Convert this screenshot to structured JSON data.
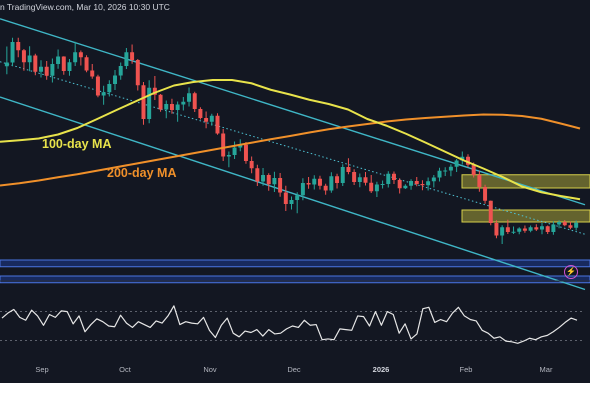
{
  "header": {
    "text": "n TradingView.com, Mar 10, 2026 10:30 UTC"
  },
  "labels": {
    "ma100": "100-day MA",
    "ma200": "200-day MA"
  },
  "colors": {
    "background": "#131722",
    "bull": "#26a69a",
    "bear": "#ef5350",
    "ma100": "#e8e34b",
    "ma200": "#f0902a",
    "channel": "#3fb6c6",
    "midline": "#4fc3d4",
    "zone_yellow": "#a7a238",
    "zone_blue": "#1e3a8f",
    "rsi": "#e6e6e6",
    "alert": "#d152d1"
  },
  "icons": {
    "alert": "lightning-icon"
  },
  "chart_data": [
    {
      "type": "candlestick",
      "title": "",
      "x_axis": {
        "ticks": [
          "Sep",
          "Oct",
          "Nov",
          "Dec",
          "2026",
          "Feb",
          "Mar"
        ],
        "strong_ticks": [
          "2026"
        ]
      },
      "y_scale_note": "price axis not shown; values in relative units (0 = bottom, 100 = top of price pane)",
      "ylim": [
        0,
        100
      ],
      "candles": [
        [
          80.7,
          88.6,
          77.5,
          82.2
        ],
        [
          82.2,
          92.1,
          80.7,
          90.4
        ],
        [
          90.4,
          92.1,
          84.3,
          87.1
        ],
        [
          87.1,
          87.6,
          78.9,
          82.3
        ],
        [
          82.3,
          88.7,
          78.7,
          85.0
        ],
        [
          85.0,
          85.7,
          77.1,
          78.5
        ],
        [
          78.5,
          83.1,
          76.2,
          80.5
        ],
        [
          80.5,
          82.8,
          75.3,
          76.9
        ],
        [
          76.9,
          83.8,
          74.2,
          81.6
        ],
        [
          81.6,
          87.4,
          79.7,
          84.6
        ],
        [
          84.6,
          84.7,
          77.3,
          78.8
        ],
        [
          78.8,
          83.6,
          76.9,
          82.3
        ],
        [
          82.3,
          90.5,
          80.8,
          86.3
        ],
        [
          86.3,
          87.0,
          81.0,
          84.3
        ],
        [
          84.3,
          85.1,
          78.3,
          79.0
        ],
        [
          79.0,
          81.6,
          75.7,
          76.6
        ],
        [
          76.6,
          77.3,
          68.3,
          69.0
        ],
        [
          69.0,
          72.9,
          65.3,
          70.3
        ],
        [
          70.3,
          75.1,
          68.6,
          73.6
        ],
        [
          73.6,
          79.2,
          71.2,
          77.0
        ],
        [
          77.0,
          82.2,
          75.3,
          80.8
        ],
        [
          80.8,
          88.0,
          79.6,
          86.3
        ],
        [
          86.3,
          89.4,
          81.7,
          83.2
        ],
        [
          83.2,
          83.6,
          71.0,
          73.1
        ],
        [
          73.1,
          74.4,
          57.3,
          59.6
        ],
        [
          59.6,
          75.1,
          57.9,
          72.1
        ],
        [
          72.1,
          76.8,
          67.2,
          69.3
        ],
        [
          69.3,
          69.6,
          62.5,
          63.4
        ],
        [
          63.4,
          67.0,
          59.9,
          65.6
        ],
        [
          65.6,
          67.7,
          61.7,
          63.2
        ],
        [
          63.2,
          66.6,
          58.5,
          65.4
        ],
        [
          65.4,
          68.4,
          63.0,
          66.5
        ],
        [
          66.5,
          72.2,
          64.6,
          69.9
        ],
        [
          69.9,
          70.5,
          62.4,
          63.6
        ],
        [
          63.6,
          64.3,
          59.4,
          60.0
        ],
        [
          60.0,
          62.6,
          55.9,
          58.5
        ],
        [
          58.5,
          61.7,
          56.9,
          60.9
        ],
        [
          60.9,
          61.9,
          53.3,
          53.8
        ],
        [
          53.8,
          55.6,
          42.8,
          44.6
        ],
        [
          44.6,
          46.6,
          40.3,
          45.2
        ],
        [
          45.2,
          50.6,
          43.6,
          48.2
        ],
        [
          48.2,
          51.5,
          46.7,
          49.3
        ],
        [
          49.3,
          50.4,
          41.7,
          42.8
        ],
        [
          42.8,
          44.6,
          37.9,
          39.9
        ],
        [
          39.9,
          41.3,
          32.8,
          34.6
        ],
        [
          34.6,
          40.0,
          32.9,
          37.2
        ],
        [
          37.2,
          37.9,
          30.9,
          33.5
        ],
        [
          33.5,
          38.5,
          30.4,
          36.0
        ],
        [
          36.0,
          38.0,
          28.5,
          30.2
        ],
        [
          30.2,
          32.9,
          22.8,
          25.6
        ],
        [
          25.6,
          28.6,
          23.4,
          27.2
        ],
        [
          27.2,
          30.3,
          21.9,
          29.1
        ],
        [
          29.1,
          35.9,
          27.1,
          34.0
        ],
        [
          34.0,
          36.4,
          31.7,
          33.4
        ],
        [
          33.4,
          37.1,
          31.4,
          35.7
        ],
        [
          35.7,
          36.9,
          31.4,
          32.9
        ],
        [
          32.9,
          33.7,
          29.3,
          31.0
        ],
        [
          31.0,
          38.3,
          30.1,
          36.7
        ],
        [
          36.7,
          37.7,
          31.8,
          34.0
        ],
        [
          34.0,
          41.5,
          32.8,
          40.4
        ],
        [
          40.4,
          43.9,
          37.5,
          38.4
        ],
        [
          38.4,
          39.5,
          33.2,
          34.4
        ],
        [
          34.4,
          37.8,
          32.3,
          36.3
        ],
        [
          36.3,
          38.4,
          33.0,
          34.1
        ],
        [
          34.1,
          37.2,
          30.0,
          30.7
        ],
        [
          30.7,
          34.5,
          28.4,
          33.4
        ],
        [
          33.4,
          35.0,
          31.8,
          33.6
        ],
        [
          33.6,
          38.7,
          32.2,
          37.7
        ],
        [
          37.7,
          38.6,
          33.6,
          35.2
        ],
        [
          35.2,
          35.9,
          29.8,
          31.9
        ],
        [
          31.9,
          33.5,
          31.6,
          32.9
        ],
        [
          32.9,
          35.5,
          31.3,
          34.8
        ],
        [
          34.8,
          36.4,
          32.7,
          33.6
        ],
        [
          33.6,
          35.1,
          31.1,
          33.1
        ],
        [
          33.1,
          36.2,
          31.0,
          34.7
        ],
        [
          34.7,
          37.2,
          32.2,
          36.2
        ],
        [
          36.2,
          40.1,
          34.6,
          38.9
        ],
        [
          38.9,
          40.3,
          36.8,
          39.0
        ],
        [
          39.0,
          41.5,
          36.7,
          40.5
        ],
        [
          40.5,
          43.6,
          38.4,
          43.0
        ],
        [
          43.0,
          46.6,
          41.4,
          44.5
        ],
        [
          44.5,
          45.5,
          40.3,
          41.3
        ],
        [
          41.3,
          42.2,
          36.2,
          37.2
        ],
        [
          37.2,
          38.9,
          30.5,
          32.4
        ],
        [
          32.4,
          33.3,
          25.7,
          26.9
        ],
        [
          26.9,
          27.0,
          17.1,
          18.0
        ],
        [
          18.0,
          19.1,
          11.9,
          13.0
        ],
        [
          13.0,
          17.1,
          9.6,
          16.3
        ],
        [
          16.3,
          19.3,
          13.6,
          14.4
        ],
        [
          14.4,
          16.6,
          13.6,
          14.5
        ],
        [
          14.5,
          16.3,
          13.5,
          15.8
        ],
        [
          15.8,
          17.0,
          14.1,
          14.9
        ],
        [
          14.9,
          17.0,
          14.3,
          16.3
        ],
        [
          16.3,
          17.5,
          14.8,
          15.4
        ],
        [
          15.4,
          18.0,
          13.5,
          16.7
        ],
        [
          16.7,
          17.0,
          13.6,
          14.4
        ],
        [
          14.4,
          18.7,
          13.3,
          17.4
        ],
        [
          17.4,
          19.1,
          15.9,
          18.4
        ],
        [
          18.4,
          19.2,
          16.7,
          17.1
        ],
        [
          17.1,
          18.5,
          15.5,
          16.1
        ],
        [
          16.1,
          19.0,
          15.0,
          18.1
        ]
      ],
      "ma100": [
        50.5,
        51.1,
        51.8,
        53.4,
        56.0,
        59.5,
        63.1,
        66.6,
        70.1,
        73.0,
        74.4,
        75.2,
        75.2,
        73.9,
        71.3,
        69.4,
        67.3,
        65.6,
        63.4,
        59.6,
        56.9,
        53.7,
        50.2,
        46.6,
        43.0,
        39.8,
        36.4,
        32.6,
        30.3,
        28.8,
        27.5
      ],
      "ma200": [
        33.0,
        33.9,
        35.0,
        36.3,
        37.5,
        38.9,
        40.3,
        41.7,
        43.1,
        44.5,
        45.9,
        47.3,
        48.7,
        50.1,
        51.5,
        52.8,
        54.2,
        55.5,
        56.6,
        57.6,
        58.6,
        59.4,
        60.0,
        60.5,
        61.0,
        61.4,
        61.3,
        60.8,
        59.7,
        57.8,
        55.8
      ],
      "channel_upper": [
        99.7,
        25.3
      ],
      "channel_lower": [
        68.4,
        -8.6
      ],
      "channel_mid": [
        82.5,
        13.5
      ],
      "resistance_zones": [
        [
          32.0,
          37.3
        ],
        [
          18.4,
          23.2
        ]
      ],
      "support_zones": [
        [
          0.5,
          3.2
        ],
        [
          -5.9,
          -3.2
        ]
      ]
    },
    {
      "type": "line",
      "title": "",
      "series_meaning": "RSI oscillator (no labels printed)",
      "ylim": [
        0,
        100
      ],
      "bands": [
        30,
        70
      ],
      "values": [
        61,
        68,
        73,
        62,
        58,
        72,
        64,
        51,
        66,
        62,
        71,
        70,
        53,
        64,
        42,
        52,
        60,
        56,
        50,
        49,
        65,
        54,
        48,
        56,
        52,
        48,
        57,
        54,
        64,
        78,
        52,
        56,
        54,
        53,
        62,
        44,
        34,
        51,
        61,
        40,
        35,
        43,
        41,
        45,
        36,
        45,
        39,
        40,
        46,
        50,
        48,
        58,
        51,
        52,
        31,
        32,
        31,
        46,
        45,
        44,
        64,
        63,
        50,
        70,
        51,
        70,
        66,
        40,
        53,
        32,
        39,
        74,
        76,
        55,
        59,
        56,
        68,
        76,
        64,
        59,
        57,
        44,
        40,
        33,
        35,
        29,
        28,
        26,
        29,
        33,
        31,
        35,
        37,
        42,
        48,
        55,
        61,
        58
      ]
    }
  ]
}
